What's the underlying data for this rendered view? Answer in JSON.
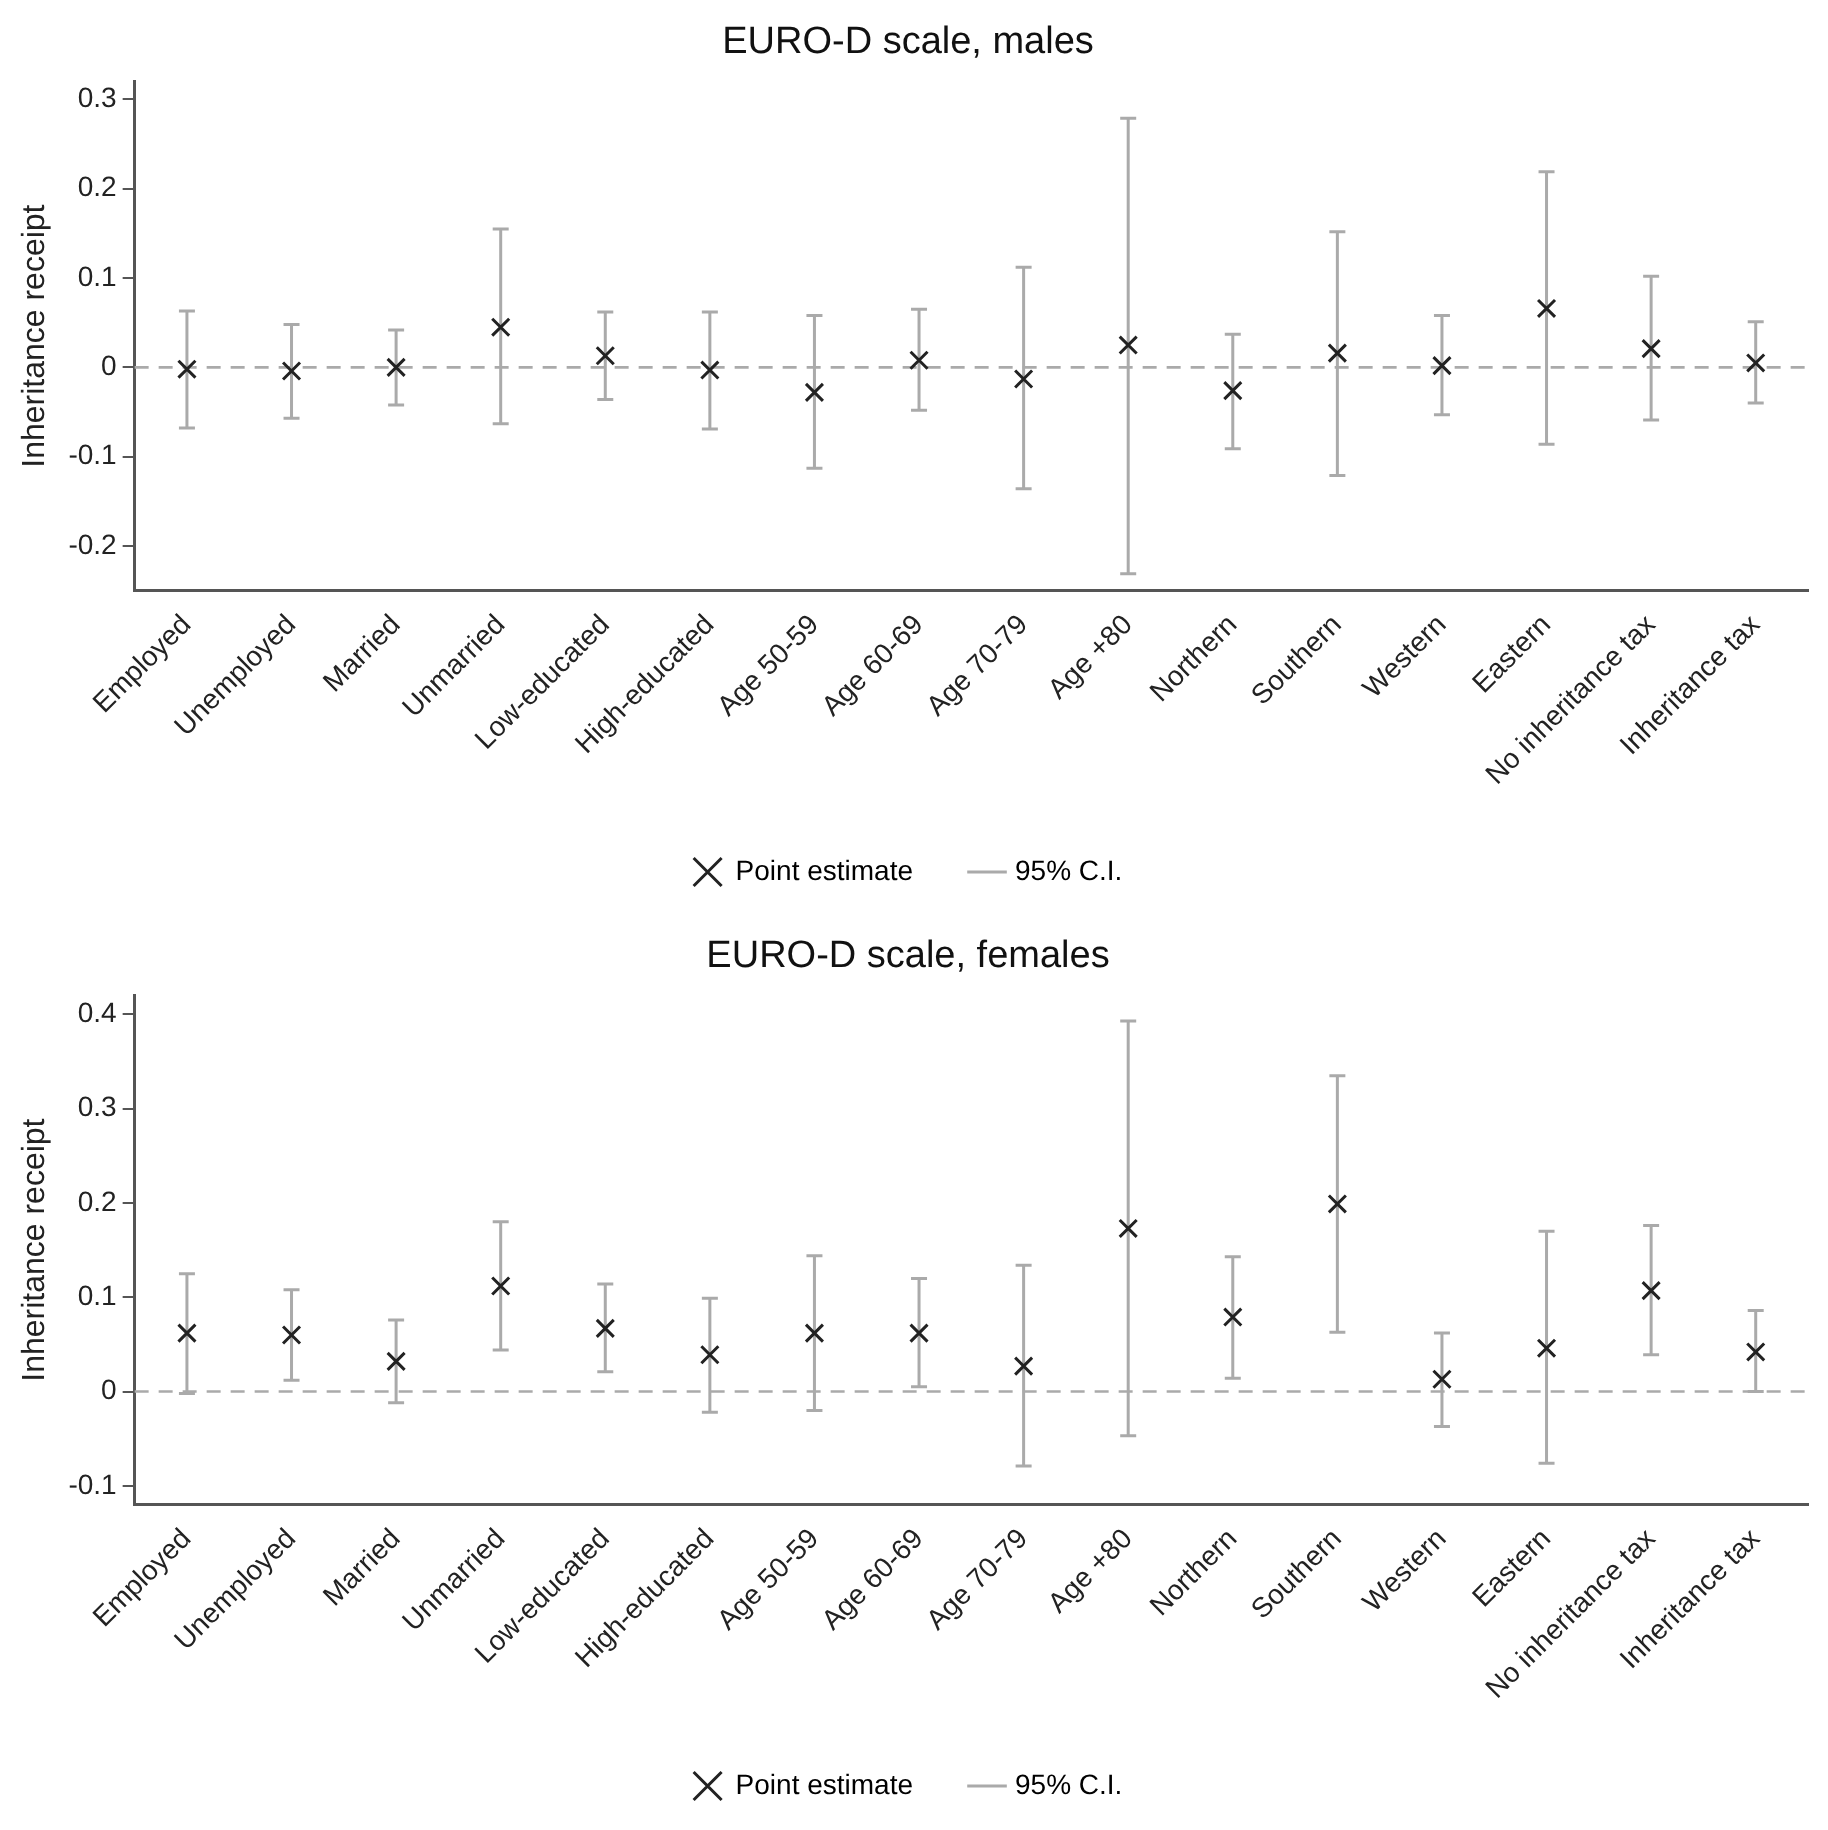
{
  "chart_data": [
    {
      "type": "scatter",
      "title": "EURO-D scale, males",
      "ylabel": "Inheritance receipt",
      "categories": [
        "Employed",
        "Unemployed",
        "Married",
        "Unmarried",
        "Low-educated",
        "High-educated",
        "Age 50-59",
        "Age 60-69",
        "Age 70-79",
        "Age +80",
        "Northern",
        "Southern",
        "Western",
        "Eastern",
        "No inheritance tax",
        "Inheritance tax"
      ],
      "series": [
        {
          "name": "Point estimate",
          "color": "#222222",
          "values": [
            -0.002,
            -0.004,
            0.0,
            0.045,
            0.013,
            -0.003,
            -0.028,
            0.008,
            -0.013,
            0.025,
            -0.026,
            0.016,
            0.002,
            0.066,
            0.021,
            0.005
          ],
          "errors": [
            [
              -0.068,
              0.063
            ],
            [
              -0.057,
              0.048
            ],
            [
              -0.042,
              0.042
            ],
            [
              -0.063,
              0.155
            ],
            [
              -0.036,
              0.062
            ],
            [
              -0.069,
              0.062
            ],
            [
              -0.113,
              0.058
            ],
            [
              -0.048,
              0.065
            ],
            [
              -0.136,
              0.112
            ],
            [
              -0.231,
              0.279
            ],
            [
              -0.091,
              0.037
            ],
            [
              -0.121,
              0.152
            ],
            [
              -0.053,
              0.058
            ],
            [
              -0.086,
              0.219
            ],
            [
              -0.059,
              0.102
            ],
            [
              -0.04,
              0.051
            ]
          ]
        }
      ],
      "annotations": [
        "95% C.I."
      ],
      "marker": "cross",
      "ylim": [
        -0.25,
        0.32
      ],
      "yticks": [
        -0.2,
        -0.1,
        0,
        0.1,
        0.2,
        0.3
      ],
      "legend": "bottom",
      "ref_lines": [
        {
          "axis": "y",
          "value": 0,
          "color": "#aaaaaa",
          "line_style": "dashed"
        }
      ]
    },
    {
      "type": "scatter",
      "title": "EURO-D scale, females",
      "ylabel": "Inheritance receipt",
      "categories": [
        "Employed",
        "Unemployed",
        "Married",
        "Unmarried",
        "Low-educated",
        "High-educated",
        "Age 50-59",
        "Age 60-69",
        "Age 70-79",
        "Age +80",
        "Northern",
        "Southern",
        "Western",
        "Eastern",
        "No inheritance tax",
        "Inheritance tax"
      ],
      "series": [
        {
          "name": "Point estimate",
          "color": "#222222",
          "values": [
            0.062,
            0.06,
            0.032,
            0.112,
            0.067,
            0.039,
            0.062,
            0.062,
            0.027,
            0.173,
            0.079,
            0.199,
            0.013,
            0.046,
            0.107,
            0.042
          ],
          "errors": [
            [
              -0.002,
              0.125
            ],
            [
              0.012,
              0.108
            ],
            [
              -0.012,
              0.076
            ],
            [
              0.044,
              0.18
            ],
            [
              0.021,
              0.114
            ],
            [
              -0.022,
              0.099
            ],
            [
              -0.02,
              0.144
            ],
            [
              0.005,
              0.12
            ],
            [
              -0.079,
              0.134
            ],
            [
              -0.047,
              0.393
            ],
            [
              0.014,
              0.143
            ],
            [
              0.063,
              0.335
            ],
            [
              -0.037,
              0.062
            ],
            [
              -0.076,
              0.17
            ],
            [
              0.039,
              0.176
            ],
            [
              0.0,
              0.086
            ]
          ]
        }
      ],
      "annotations": [
        "95% C.I."
      ],
      "marker": "cross",
      "ylim": [
        -0.12,
        0.42
      ],
      "yticks": [
        -0.1,
        0,
        0.1,
        0.2,
        0.3,
        0.4
      ],
      "legend": "bottom",
      "ref_lines": [
        {
          "axis": "y",
          "value": 0,
          "color": "#aaaaaa",
          "line_style": "dashed"
        }
      ]
    }
  ]
}
